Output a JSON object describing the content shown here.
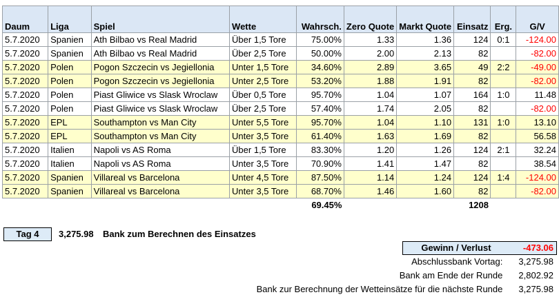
{
  "headers": [
    "Daum",
    "Liga",
    "Spiel",
    "Wette",
    "Wahrsch.",
    "Zero Quote",
    "Markt Quote",
    "Einsatz",
    "Erg.",
    "G/V"
  ],
  "rows": [
    {
      "date": "5.7.2020",
      "league": "Spanien",
      "match": "Ath Bilbao vs Real Madrid",
      "bet": "Über 1,5 Tore",
      "prob": "75.00%",
      "zero": "1.33",
      "market": "1.36",
      "stake": "124",
      "result": "0:1",
      "gv": "-124.00",
      "style": "white"
    },
    {
      "date": "5.7.2020",
      "league": "Spanien",
      "match": "Ath Bilbao vs Real Madrid",
      "bet": "Über 2,5 Tore",
      "prob": "50.00%",
      "zero": "2.00",
      "market": "2.13",
      "stake": "82",
      "result": "",
      "gv": "-82.00",
      "style": "white"
    },
    {
      "date": "5.7.2020",
      "league": "Polen",
      "match": "Pogon Szczecin vs Jegiellonia",
      "bet": "Unter 1,5 Tore",
      "prob": "34.60%",
      "zero": "2.89",
      "market": "3.65",
      "stake": "49",
      "result": "2:2",
      "gv": "-49.00",
      "style": "yellow"
    },
    {
      "date": "5.7.2020",
      "league": "Polen",
      "match": "Pogon Szczecin vs Jegiellonia",
      "bet": "Unter 2,5 Tore",
      "prob": "53.20%",
      "zero": "1.88",
      "market": "1.91",
      "stake": "82",
      "result": "",
      "gv": "-82.00",
      "style": "yellow"
    },
    {
      "date": "5.7.2020",
      "league": "Polen",
      "match": "Piast Gliwice vs Slask Wroclaw",
      "bet": "Über 0,5 Tore",
      "prob": "95.70%",
      "zero": "1.04",
      "market": "1.07",
      "stake": "164",
      "result": "1:0",
      "gv": "11.48",
      "style": "white"
    },
    {
      "date": "5.7.2020",
      "league": "Polen",
      "match": "Piast Gliwice vs Slask Wroclaw",
      "bet": "Über 2,5 Tore",
      "prob": "57.40%",
      "zero": "1.74",
      "market": "2.05",
      "stake": "82",
      "result": "",
      "gv": "-82.00",
      "style": "white"
    },
    {
      "date": "5.7.2020",
      "league": "EPL",
      "match": "Southampton vs Man City",
      "bet": "Unter 5,5 Tore",
      "prob": "95.70%",
      "zero": "1.04",
      "market": "1.10",
      "stake": "131",
      "result": "1:0",
      "gv": "13.10",
      "style": "yellow"
    },
    {
      "date": "5.7.2020",
      "league": "EPL",
      "match": "Southampton vs Man City",
      "bet": "Unter 3,5 Tore",
      "prob": "61.40%",
      "zero": "1.63",
      "market": "1.69",
      "stake": "82",
      "result": "",
      "gv": "56.58",
      "style": "yellow"
    },
    {
      "date": "5.7.2020",
      "league": "Italien",
      "match": "Napoli vs AS Roma",
      "bet": "Über 1,5 Tore",
      "prob": "83.30%",
      "zero": "1.20",
      "market": "1.26",
      "stake": "124",
      "result": "2:1",
      "gv": "32.24",
      "style": "white"
    },
    {
      "date": "5.7.2020",
      "league": "Italien",
      "match": "Napoli vs AS Roma",
      "bet": "Unter 3,5 Tore",
      "prob": "70.90%",
      "zero": "1.41",
      "market": "1.47",
      "stake": "82",
      "result": "",
      "gv": "38.54",
      "style": "white"
    },
    {
      "date": "5.7.2020",
      "league": "Spanien",
      "match": "Villareal vs Barcelona",
      "bet": "Unter 4,5 Tore",
      "prob": "87.50%",
      "zero": "1.14",
      "market": "1.24",
      "stake": "124",
      "result": "1:4",
      "gv": "-124.00",
      "style": "yellow"
    },
    {
      "date": "5.7.2020",
      "league": "Spanien",
      "match": "Villareal vs Barcelona",
      "bet": "Unter 3,5 Tore",
      "prob": "68.70%",
      "zero": "1.46",
      "market": "1.60",
      "stake": "82",
      "result": "",
      "gv": "-82.00",
      "style": "yellow"
    }
  ],
  "totals": {
    "prob": "69.45%",
    "stake": "1208"
  },
  "tag": "Tag 4",
  "bank_value": "3,275.98",
  "bank_label": "Bank zum Berechnen des Einsatzes",
  "gv_label": "Gewinn / Verlust",
  "gv_total": "-473.06",
  "summary": [
    {
      "label": "Abschlussbank Vortag:",
      "value": "3,275.98"
    },
    {
      "label": "Bank am Ende der Runde",
      "value": "2,802.92"
    },
    {
      "label": "Bank zur Berechnung der Wetteinsätze für die nächste Runde",
      "value": "3,275.98"
    }
  ],
  "colors": {
    "header_bg": "#dbe7f5",
    "row_yellow": "#ffffcc",
    "negative": "#ff0000",
    "box_bg": "#ddebf7"
  }
}
